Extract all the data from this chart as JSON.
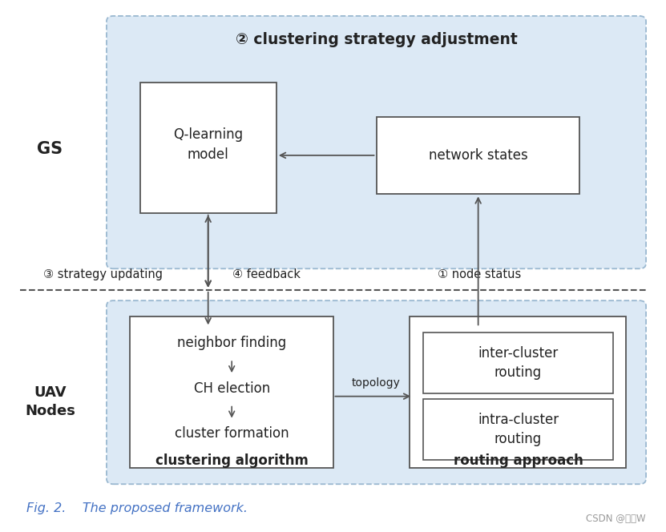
{
  "fig_width": 8.31,
  "fig_height": 6.64,
  "bg_color": "#ffffff",
  "title_text": "Fig. 2.    The proposed framework.",
  "watermark": "CSDN @小威W",
  "gs_label": "GS",
  "uav_label": "UAV\nNodes",
  "top_box_color": "#dce9f5",
  "top_box_edge": "#9ab8d0",
  "bottom_box_color": "#dce9f5",
  "bottom_box_edge": "#9ab8d0",
  "inner_box_color": "#ffffff",
  "inner_box_edge": "#555555",
  "heading_text": "② clustering strategy adjustment",
  "qlearning_text": "Q-learning\nmodel",
  "network_states_text": "network states",
  "neighbor_text": "neighbor finding",
  "ch_text": "CH election",
  "cluster_text": "cluster formation",
  "clustering_algo_label": "clustering algorithm",
  "routing_approach_label": "routing approach",
  "inter_cluster_text": "inter-cluster\nrouting",
  "intra_cluster_text": "intra-cluster\nrouting",
  "topology_text": "topology",
  "label3": "③ strategy updating",
  "label4": "④ feedback",
  "label1": "① node status",
  "arrow_color": "#555555",
  "dashed_line_color": "#555555",
  "text_color": "#222222",
  "fig_caption_color": "#4472c4"
}
